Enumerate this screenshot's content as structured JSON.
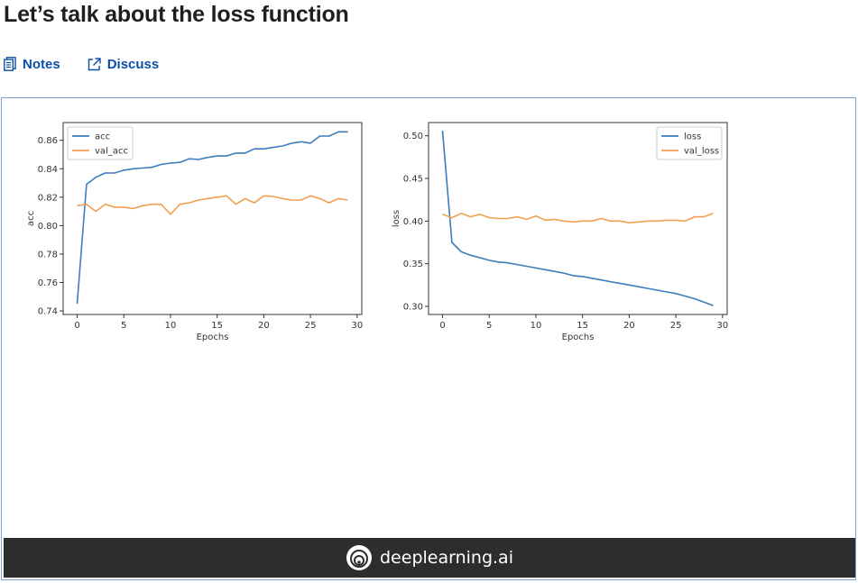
{
  "page": {
    "title": "Let’s talk about the loss function"
  },
  "actions": {
    "notes_label": "Notes",
    "discuss_label": "Discuss",
    "notes_icon": "notes-icon",
    "discuss_icon": "external-link-icon"
  },
  "colors": {
    "accent": "#0b4fa8",
    "series_blue": "#3b7dbd",
    "series_orange": "#f0a050",
    "footer_bg": "#2d2d2d"
  },
  "footer": {
    "brand": "deeplearning.ai",
    "logo_icon": "deeplearning-logo-icon"
  },
  "chart_data": [
    {
      "type": "line",
      "title": "",
      "xlabel": "Epochs",
      "ylabel": "acc",
      "xlim": [
        -1.5,
        30.5
      ],
      "ylim": [
        0.7375,
        0.8725
      ],
      "xticks": [
        0,
        5,
        10,
        15,
        20,
        25,
        30
      ],
      "yticks": [
        0.74,
        0.76,
        0.78,
        0.8,
        0.82,
        0.84,
        0.86
      ],
      "tick_labels_y": [
        "0.74",
        "0.76",
        "0.78",
        "0.80",
        "0.82",
        "0.84",
        "0.86"
      ],
      "legend": "top-left",
      "grid": false,
      "series": [
        {
          "name": "acc",
          "color": "#3b7dbd",
          "x": [
            0,
            1,
            2,
            3,
            4,
            5,
            6,
            7,
            8,
            9,
            10,
            11,
            12,
            13,
            14,
            15,
            16,
            17,
            18,
            19,
            20,
            21,
            22,
            23,
            24,
            25,
            26,
            27,
            28,
            29
          ],
          "values": [
            0.745,
            0.829,
            0.834,
            0.837,
            0.837,
            0.839,
            0.84,
            0.8405,
            0.841,
            0.843,
            0.844,
            0.8445,
            0.847,
            0.8465,
            0.848,
            0.849,
            0.849,
            0.851,
            0.851,
            0.854,
            0.854,
            0.855,
            0.856,
            0.858,
            0.859,
            0.858,
            0.863,
            0.863,
            0.866,
            0.866
          ]
        },
        {
          "name": "val_acc",
          "color": "#f0a050",
          "x": [
            0,
            1,
            2,
            3,
            4,
            5,
            6,
            7,
            8,
            9,
            10,
            11,
            12,
            13,
            14,
            15,
            16,
            17,
            18,
            19,
            20,
            21,
            22,
            23,
            24,
            25,
            26,
            27,
            28,
            29
          ],
          "values": [
            0.814,
            0.815,
            0.81,
            0.815,
            0.813,
            0.813,
            0.812,
            0.814,
            0.815,
            0.815,
            0.808,
            0.815,
            0.816,
            0.818,
            0.819,
            0.82,
            0.821,
            0.815,
            0.819,
            0.816,
            0.821,
            0.8205,
            0.819,
            0.818,
            0.818,
            0.821,
            0.819,
            0.816,
            0.819,
            0.818
          ]
        }
      ]
    },
    {
      "type": "line",
      "title": "",
      "xlabel": "Epochs",
      "ylabel": "loss",
      "xlim": [
        -1.5,
        30.5
      ],
      "ylim": [
        0.2905,
        0.5155
      ],
      "xticks": [
        0,
        5,
        10,
        15,
        20,
        25,
        30
      ],
      "yticks": [
        0.3,
        0.35,
        0.4,
        0.45,
        0.5
      ],
      "tick_labels_y": [
        "0.30",
        "0.35",
        "0.40",
        "0.45",
        "0.50"
      ],
      "legend": "top-right",
      "grid": false,
      "series": [
        {
          "name": "loss",
          "color": "#3b7dbd",
          "x": [
            0,
            1,
            2,
            3,
            4,
            5,
            6,
            7,
            8,
            9,
            10,
            11,
            12,
            13,
            14,
            15,
            16,
            17,
            18,
            19,
            20,
            21,
            22,
            23,
            24,
            25,
            26,
            27,
            28,
            29
          ],
          "values": [
            0.506,
            0.375,
            0.364,
            0.36,
            0.357,
            0.354,
            0.352,
            0.351,
            0.349,
            0.347,
            0.345,
            0.343,
            0.341,
            0.339,
            0.336,
            0.335,
            0.333,
            0.331,
            0.329,
            0.327,
            0.325,
            0.323,
            0.321,
            0.319,
            0.317,
            0.315,
            0.312,
            0.309,
            0.305,
            0.301
          ]
        },
        {
          "name": "val_loss",
          "color": "#f0a050",
          "x": [
            0,
            1,
            2,
            3,
            4,
            5,
            6,
            7,
            8,
            9,
            10,
            11,
            12,
            13,
            14,
            15,
            16,
            17,
            18,
            19,
            20,
            21,
            22,
            23,
            24,
            25,
            26,
            27,
            28,
            29
          ],
          "values": [
            0.408,
            0.404,
            0.409,
            0.405,
            0.408,
            0.404,
            0.403,
            0.403,
            0.405,
            0.402,
            0.406,
            0.401,
            0.402,
            0.4,
            0.399,
            0.4,
            0.4,
            0.403,
            0.4,
            0.4,
            0.398,
            0.399,
            0.4,
            0.4,
            0.401,
            0.401,
            0.4,
            0.405,
            0.405,
            0.409
          ]
        }
      ]
    }
  ]
}
